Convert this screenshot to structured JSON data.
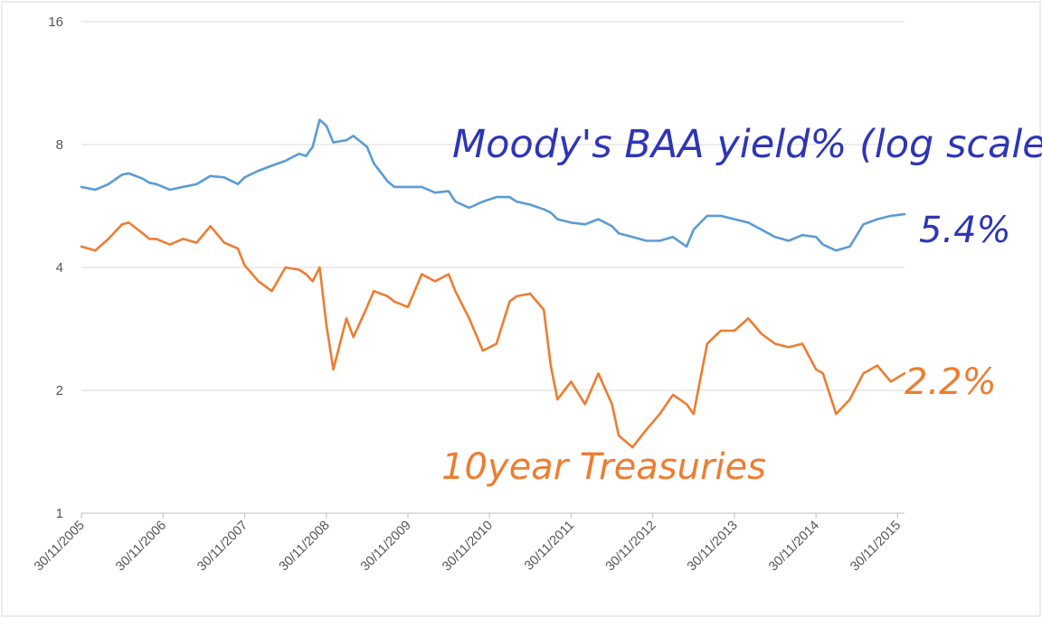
{
  "chart_data": {
    "type": "line",
    "y_scale": "log2",
    "ylim": [
      1,
      16
    ],
    "y_ticks": [
      {
        "v": 16,
        "label": "16"
      },
      {
        "v": 8,
        "label": "8"
      },
      {
        "v": 4,
        "label": "4"
      },
      {
        "v": 2,
        "label": "2"
      },
      {
        "v": 1,
        "label": "1"
      }
    ],
    "x_tick_labels": [
      "30/11/2005",
      "30/11/2006",
      "30/11/2007",
      "30/11/2008",
      "30/11/2009",
      "30/11/2010",
      "30/11/2011",
      "30/11/2012",
      "30/11/2013",
      "30/11/2014",
      "30/11/2015"
    ],
    "x_start": "2005-11-30",
    "x_end": "2015-12-31",
    "grid": "horizontal",
    "annotations": {
      "baa_label": "Moody's BAA yield% (log scale)",
      "baa_value": "5.4%",
      "treasury_label": "10year Treasuries",
      "treasury_value": "2.2%"
    },
    "colors": {
      "baa": "#5b9bd5",
      "treasury": "#ed7d31",
      "baa_note": "#2e35b6",
      "treasury_note": "#ed7d31",
      "grid": "#d9d9d9"
    },
    "series": [
      {
        "key": "baa",
        "points": [
          [
            "2005-11-30",
            6.3
          ],
          [
            "2006-01-31",
            6.2
          ],
          [
            "2006-03-31",
            6.4
          ],
          [
            "2006-05-31",
            6.75
          ],
          [
            "2006-06-30",
            6.8
          ],
          [
            "2006-08-31",
            6.6
          ],
          [
            "2006-09-30",
            6.45
          ],
          [
            "2006-10-31",
            6.4
          ],
          [
            "2006-12-31",
            6.2
          ],
          [
            "2007-02-28",
            6.3
          ],
          [
            "2007-04-30",
            6.4
          ],
          [
            "2007-06-30",
            6.7
          ],
          [
            "2007-08-31",
            6.65
          ],
          [
            "2007-10-31",
            6.4
          ],
          [
            "2007-11-30",
            6.65
          ],
          [
            "2008-01-31",
            6.9
          ],
          [
            "2008-03-31",
            7.1
          ],
          [
            "2008-05-31",
            7.3
          ],
          [
            "2008-07-31",
            7.6
          ],
          [
            "2008-08-31",
            7.5
          ],
          [
            "2008-09-30",
            7.9
          ],
          [
            "2008-10-31",
            9.2
          ],
          [
            "2008-11-30",
            8.9
          ],
          [
            "2008-12-31",
            8.1
          ],
          [
            "2009-02-28",
            8.2
          ],
          [
            "2009-03-31",
            8.4
          ],
          [
            "2009-05-31",
            7.9
          ],
          [
            "2009-06-30",
            7.2
          ],
          [
            "2009-08-31",
            6.5
          ],
          [
            "2009-09-30",
            6.3
          ],
          [
            "2009-11-30",
            6.3
          ],
          [
            "2010-01-31",
            6.3
          ],
          [
            "2010-03-31",
            6.1
          ],
          [
            "2010-05-31",
            6.15
          ],
          [
            "2010-06-30",
            5.8
          ],
          [
            "2010-08-31",
            5.6
          ],
          [
            "2010-10-31",
            5.8
          ],
          [
            "2010-12-31",
            5.95
          ],
          [
            "2011-02-28",
            5.95
          ],
          [
            "2011-03-31",
            5.8
          ],
          [
            "2011-05-31",
            5.7
          ],
          [
            "2011-07-31",
            5.55
          ],
          [
            "2011-08-31",
            5.45
          ],
          [
            "2011-09-30",
            5.25
          ],
          [
            "2011-11-30",
            5.15
          ],
          [
            "2012-01-31",
            5.1
          ],
          [
            "2012-03-31",
            5.25
          ],
          [
            "2012-05-31",
            5.05
          ],
          [
            "2012-06-30",
            4.85
          ],
          [
            "2012-08-31",
            4.75
          ],
          [
            "2012-10-31",
            4.65
          ],
          [
            "2012-12-31",
            4.65
          ],
          [
            "2013-02-28",
            4.75
          ],
          [
            "2013-04-30",
            4.5
          ],
          [
            "2013-05-31",
            4.95
          ],
          [
            "2013-07-31",
            5.35
          ],
          [
            "2013-09-30",
            5.35
          ],
          [
            "2013-11-30",
            5.25
          ],
          [
            "2014-01-31",
            5.15
          ],
          [
            "2014-03-31",
            4.95
          ],
          [
            "2014-05-31",
            4.75
          ],
          [
            "2014-07-31",
            4.65
          ],
          [
            "2014-09-30",
            4.8
          ],
          [
            "2014-11-30",
            4.75
          ],
          [
            "2014-12-31",
            4.55
          ],
          [
            "2015-02-28",
            4.4
          ],
          [
            "2015-04-30",
            4.5
          ],
          [
            "2015-06-30",
            5.1
          ],
          [
            "2015-08-31",
            5.25
          ],
          [
            "2015-10-31",
            5.35
          ],
          [
            "2015-12-31",
            5.4
          ]
        ]
      },
      {
        "key": "treasury",
        "points": [
          [
            "2005-11-30",
            4.5
          ],
          [
            "2006-01-31",
            4.4
          ],
          [
            "2006-03-31",
            4.7
          ],
          [
            "2006-05-31",
            5.1
          ],
          [
            "2006-06-30",
            5.15
          ],
          [
            "2006-08-31",
            4.85
          ],
          [
            "2006-09-30",
            4.7
          ],
          [
            "2006-10-31",
            4.7
          ],
          [
            "2006-12-31",
            4.55
          ],
          [
            "2007-02-28",
            4.7
          ],
          [
            "2007-04-30",
            4.6
          ],
          [
            "2007-06-30",
            5.05
          ],
          [
            "2007-08-31",
            4.6
          ],
          [
            "2007-10-31",
            4.45
          ],
          [
            "2007-11-30",
            4.05
          ],
          [
            "2008-01-31",
            3.7
          ],
          [
            "2008-03-31",
            3.5
          ],
          [
            "2008-05-31",
            4.0
          ],
          [
            "2008-07-31",
            3.95
          ],
          [
            "2008-08-31",
            3.85
          ],
          [
            "2008-09-30",
            3.7
          ],
          [
            "2008-10-31",
            4.0
          ],
          [
            "2008-11-30",
            2.9
          ],
          [
            "2008-12-31",
            2.25
          ],
          [
            "2009-02-28",
            3.0
          ],
          [
            "2009-03-31",
            2.7
          ],
          [
            "2009-05-31",
            3.2
          ],
          [
            "2009-06-30",
            3.5
          ],
          [
            "2009-08-31",
            3.4
          ],
          [
            "2009-09-30",
            3.3
          ],
          [
            "2009-11-30",
            3.2
          ],
          [
            "2010-01-31",
            3.85
          ],
          [
            "2010-03-31",
            3.7
          ],
          [
            "2010-05-31",
            3.85
          ],
          [
            "2010-06-30",
            3.5
          ],
          [
            "2010-08-31",
            3.0
          ],
          [
            "2010-10-31",
            2.5
          ],
          [
            "2010-12-31",
            2.6
          ],
          [
            "2011-02-28",
            3.3
          ],
          [
            "2011-03-31",
            3.4
          ],
          [
            "2011-05-31",
            3.45
          ],
          [
            "2011-07-31",
            3.15
          ],
          [
            "2011-08-31",
            2.3
          ],
          [
            "2011-09-30",
            1.9
          ],
          [
            "2011-11-30",
            2.1
          ],
          [
            "2012-01-31",
            1.85
          ],
          [
            "2012-03-31",
            2.2
          ],
          [
            "2012-05-31",
            1.85
          ],
          [
            "2012-06-30",
            1.55
          ],
          [
            "2012-08-31",
            1.45
          ],
          [
            "2012-10-31",
            1.6
          ],
          [
            "2012-12-31",
            1.75
          ],
          [
            "2013-02-28",
            1.95
          ],
          [
            "2013-04-30",
            1.85
          ],
          [
            "2013-05-31",
            1.75
          ],
          [
            "2013-07-31",
            2.6
          ],
          [
            "2013-09-30",
            2.8
          ],
          [
            "2013-11-30",
            2.8
          ],
          [
            "2014-01-31",
            3.0
          ],
          [
            "2014-03-31",
            2.75
          ],
          [
            "2014-05-31",
            2.6
          ],
          [
            "2014-07-31",
            2.55
          ],
          [
            "2014-09-30",
            2.6
          ],
          [
            "2014-11-30",
            2.25
          ],
          [
            "2014-12-31",
            2.2
          ],
          [
            "2015-02-28",
            1.75
          ],
          [
            "2015-04-30",
            1.9
          ],
          [
            "2015-06-30",
            2.2
          ],
          [
            "2015-08-31",
            2.3
          ],
          [
            "2015-10-31",
            2.1
          ],
          [
            "2015-12-31",
            2.2
          ]
        ]
      }
    ]
  }
}
